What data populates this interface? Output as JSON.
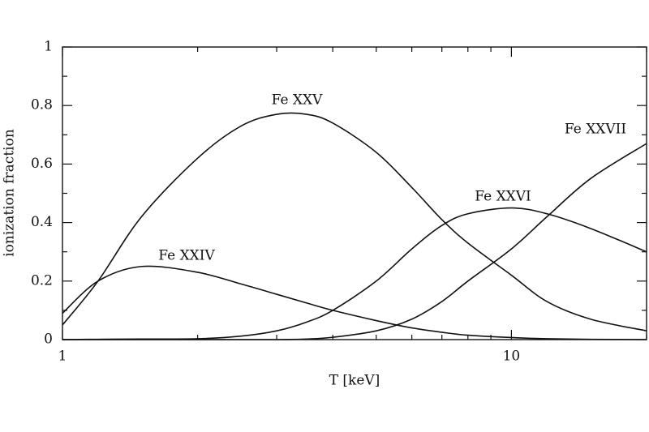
{
  "chart_data": {
    "type": "line",
    "xlabel": "T [keV]",
    "ylabel": "ionization fraction",
    "xscale": "log",
    "x": [
      1,
      1.2,
      1.5,
      2,
      2.5,
      3,
      3.5,
      4,
      5,
      6,
      7,
      8,
      10,
      12,
      15,
      20
    ],
    "series": [
      {
        "name": "Fe XXIV",
        "color": "#111111",
        "values": [
          0.09,
          0.2,
          0.25,
          0.23,
          0.19,
          0.155,
          0.125,
          0.1,
          0.065,
          0.04,
          0.025,
          0.015,
          0.007,
          0.003,
          0.001,
          0
        ]
      },
      {
        "name": "Fe XXV",
        "color": "#111111",
        "values": [
          0.05,
          0.2,
          0.42,
          0.62,
          0.73,
          0.77,
          0.77,
          0.74,
          0.64,
          0.52,
          0.41,
          0.33,
          0.22,
          0.13,
          0.07,
          0.03
        ]
      },
      {
        "name": "Fe XXVI",
        "color": "#111111",
        "values": [
          0,
          0.001,
          0.002,
          0.003,
          0.012,
          0.03,
          0.06,
          0.1,
          0.2,
          0.31,
          0.39,
          0.43,
          0.45,
          0.43,
          0.38,
          0.3
        ]
      },
      {
        "name": "Fe XXVII",
        "color": "#111111",
        "values": [
          0,
          0,
          0,
          0,
          0,
          0,
          0.002,
          0.008,
          0.03,
          0.07,
          0.13,
          0.2,
          0.31,
          0.42,
          0.55,
          0.67
        ]
      }
    ],
    "xlim": [
      1,
      20
    ],
    "xticks": [
      1,
      10
    ],
    "xminor_ticks": [
      2,
      3,
      4,
      5,
      6,
      7,
      8,
      9,
      20
    ],
    "ylim": [
      0,
      1
    ],
    "yticks": [
      0,
      0.2,
      0.4,
      0.6,
      0.8,
      1
    ],
    "yminor_ticks": [
      0.1,
      0.3,
      0.5,
      0.7,
      0.9
    ],
    "grid": false
  }
}
